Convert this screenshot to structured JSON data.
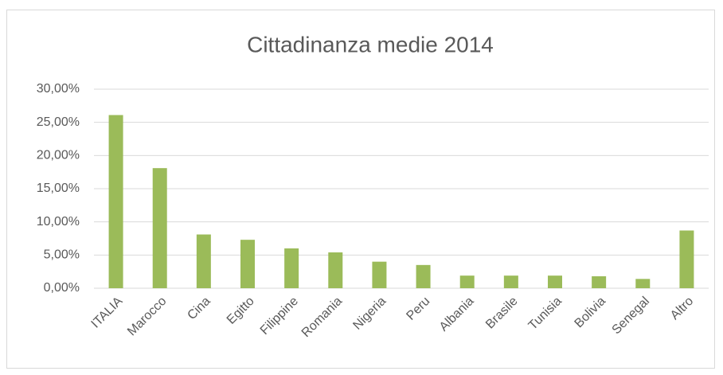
{
  "chart_data": {
    "type": "bar",
    "title": "Cittadinanza medie 2014",
    "categories": [
      "ITALIA",
      "Marocco",
      "Cina",
      "Egitto",
      "Filippine",
      "Romania",
      "Nigeria",
      "Peru",
      "Albania",
      "Brasile",
      "Tunisia",
      "Bolivia",
      "Senegal",
      "Altro"
    ],
    "values": [
      26.1,
      18.1,
      8.1,
      7.3,
      6.0,
      5.4,
      4.0,
      3.5,
      1.9,
      1.9,
      1.9,
      1.8,
      1.4,
      8.7
    ],
    "color": "#9bbb59",
    "ylim": [
      0,
      30
    ],
    "yticks": [
      {
        "value": 0,
        "label": "0,00%"
      },
      {
        "value": 5,
        "label": "5,00%"
      },
      {
        "value": 10,
        "label": "10,00%"
      },
      {
        "value": 15,
        "label": "15,00%"
      },
      {
        "value": 20,
        "label": "20,00%"
      },
      {
        "value": 25,
        "label": "25,00%"
      },
      {
        "value": 30,
        "label": "30,00%"
      }
    ],
    "grid": true
  }
}
